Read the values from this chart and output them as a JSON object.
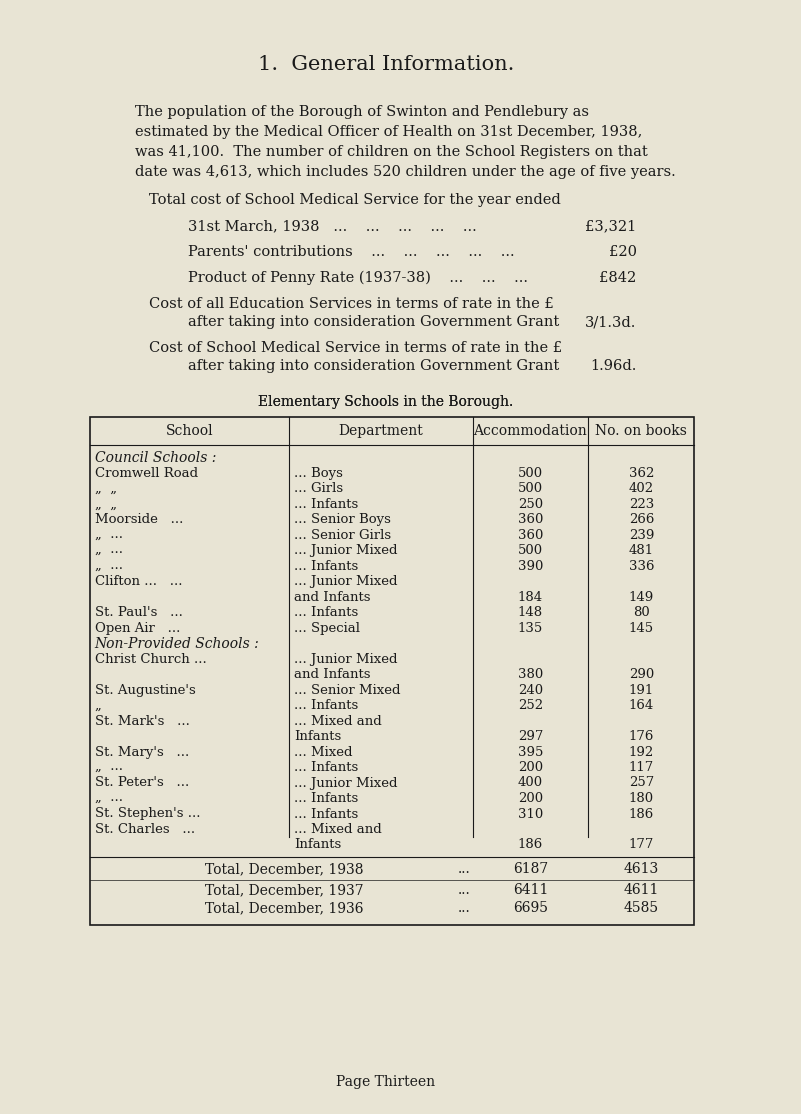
{
  "bg_color": "#e8e4d4",
  "text_color": "#1a1a1a",
  "title": "1.  General Information.",
  "para1": "The population of the Borough of Swinton and Pendlebury as\nestimated by the Medical Officer of Health on 31st December, 1938,\nwas 41,100.  The number of children on the School Registers on that\ndate was 4,613, which includes 520 children under the age of five years.",
  "cost_header": "Total cost of School Medical Service for the year ended",
  "cost_items": [
    {
      "label": "31st March, 1938   ...    ...    ...    ...    ...",
      "value": "£3,321"
    },
    {
      "label": "Parents' contributions    ...    ...    ...    ...    ...",
      "value": "£20"
    },
    {
      "label": "Product of Penny Rate (1937-38)    ...    ...    ...",
      "value": "£842"
    }
  ],
  "grant_items": [
    {
      "line1": "Cost of all Education Services in terms of rate in the £",
      "line2": "after taking into consideration Government Grant",
      "value": "3/1.3d."
    },
    {
      "line1": "Cost of School Medical Service in terms of rate in the £",
      "line2": "after taking into consideration Government Grant",
      "value": "1.96d."
    }
  ],
  "table_title": "Elementary Schools in the Borough.",
  "table_headers": [
    "School",
    "Department",
    "Accommodation",
    "No. on books"
  ],
  "table_rows": [
    [
      "Council Schools :",
      "",
      "",
      ""
    ],
    [
      "Cromwell Road",
      "... Boys",
      "500",
      "362"
    ],
    [
      "„  „",
      "... Girls",
      "500",
      "402"
    ],
    [
      "„  „",
      "... Infants",
      "250",
      "223"
    ],
    [
      "Moorside   ...",
      "... Senior Boys",
      "360",
      "266"
    ],
    [
      "„  ...",
      "... Senior Girls",
      "360",
      "239"
    ],
    [
      "„  ...",
      "... Junior Mixed",
      "500",
      "481"
    ],
    [
      "„  ...",
      "... Infants",
      "390",
      "336"
    ],
    [
      "Clifton ...   ...",
      "... Junior Mixed",
      "",
      ""
    ],
    [
      "",
      "and Infants",
      "184",
      "149"
    ],
    [
      "St. Paul's   ...",
      "... Infants",
      "148",
      "80"
    ],
    [
      "Open Air   ...",
      "... Special",
      "135",
      "145"
    ],
    [
      "Non-Provided Schools :",
      "",
      "",
      ""
    ],
    [
      "Christ Church ...",
      "... Junior Mixed",
      "",
      ""
    ],
    [
      "",
      "and Infants",
      "380",
      "290"
    ],
    [
      "St. Augustine's",
      "... Senior Mixed",
      "240",
      "191"
    ],
    [
      "„",
      "... Infants",
      "252",
      "164"
    ],
    [
      "St. Mark's   ...",
      "... Mixed and",
      "",
      ""
    ],
    [
      "",
      "Infants",
      "297",
      "176"
    ],
    [
      "St. Mary's   ...",
      "... Mixed",
      "395",
      "192"
    ],
    [
      "„  ...",
      "... Infants",
      "200",
      "117"
    ],
    [
      "St. Peter's   ...",
      "... Junior Mixed",
      "400",
      "257"
    ],
    [
      "„  ...",
      "... Infants",
      "200",
      "180"
    ],
    [
      "St. Stephen's ...",
      "... Infants",
      "310",
      "186"
    ],
    [
      "St. Charles   ...",
      "... Mixed and",
      "",
      ""
    ],
    [
      "",
      "Infants",
      "186",
      "177"
    ]
  ],
  "total_rows": [
    [
      "Total, December, 1938",
      "...",
      "6187",
      "4613"
    ],
    [
      "Total, December, 1937",
      "...",
      "6411",
      "4611"
    ],
    [
      "Total, December, 1936",
      "...",
      "6695",
      "4585"
    ]
  ],
  "footer": "Page Thirteen"
}
